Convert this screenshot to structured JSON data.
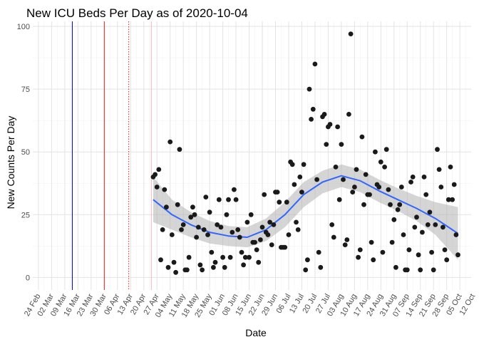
{
  "chart_data": {
    "type": "scatter",
    "title": "New ICU Beds Per Day as of 2020-10-04",
    "xlabel": "Date",
    "ylabel": "New Counts Per Day",
    "ylim": [
      -5,
      102
    ],
    "xlim": [
      "2020-02-21",
      "2020-10-11"
    ],
    "grid": true,
    "yticks": [
      0,
      25,
      50,
      75,
      100
    ],
    "xticks": [
      {
        "date": "2020-02-24",
        "label": "24 Feb"
      },
      {
        "date": "2020-03-02",
        "label": "02 Mar"
      },
      {
        "date": "2020-03-09",
        "label": "09 Mar"
      },
      {
        "date": "2020-03-16",
        "label": "16 Mar"
      },
      {
        "date": "2020-03-23",
        "label": "23 Mar"
      },
      {
        "date": "2020-03-30",
        "label": "30 Mar"
      },
      {
        "date": "2020-04-06",
        "label": "06 Apr"
      },
      {
        "date": "2020-04-13",
        "label": "13 Apr"
      },
      {
        "date": "2020-04-20",
        "label": "20 Apr"
      },
      {
        "date": "2020-04-27",
        "label": "27 Apr"
      },
      {
        "date": "2020-05-04",
        "label": "04 May"
      },
      {
        "date": "2020-05-11",
        "label": "11 May"
      },
      {
        "date": "2020-05-18",
        "label": "18 May"
      },
      {
        "date": "2020-05-25",
        "label": "25 May"
      },
      {
        "date": "2020-06-01",
        "label": "01 Jun"
      },
      {
        "date": "2020-06-08",
        "label": "08 Jun"
      },
      {
        "date": "2020-06-15",
        "label": "15 Jun"
      },
      {
        "date": "2020-06-22",
        "label": "22 Jun"
      },
      {
        "date": "2020-06-29",
        "label": "29 Jun"
      },
      {
        "date": "2020-07-06",
        "label": "06 Jul"
      },
      {
        "date": "2020-07-13",
        "label": "13 Jul"
      },
      {
        "date": "2020-07-20",
        "label": "20 Jul"
      },
      {
        "date": "2020-07-27",
        "label": "27 Jul"
      },
      {
        "date": "2020-08-03",
        "label": "03 Aug"
      },
      {
        "date": "2020-08-10",
        "label": "10 Aug"
      },
      {
        "date": "2020-08-17",
        "label": "17 Aug"
      },
      {
        "date": "2020-08-24",
        "label": "24 Aug"
      },
      {
        "date": "2020-08-31",
        "label": "31 Aug"
      },
      {
        "date": "2020-09-07",
        "label": "07 Sep"
      },
      {
        "date": "2020-09-14",
        "label": "14 Sep"
      },
      {
        "date": "2020-09-21",
        "label": "21 Sep"
      },
      {
        "date": "2020-09-28",
        "label": "28 Sep"
      },
      {
        "date": "2020-10-05",
        "label": "05 Oct"
      },
      {
        "date": "2020-10-12",
        "label": "12 Oct"
      }
    ],
    "reference_lines": [
      {
        "date": "2020-03-13",
        "color": "#00008b",
        "style": "solid"
      },
      {
        "date": "2020-03-30",
        "color": "#e31a1c",
        "style": "solid"
      },
      {
        "date": "2020-04-12",
        "color": "#e31a1c",
        "style": "dotted"
      },
      {
        "date": "2020-04-24",
        "color": "#f4b6b6",
        "style": "solid"
      }
    ],
    "colors": {
      "points": "#1a1a1a",
      "smooth_line": "#3366ff",
      "confidence_band": "#b3b3b3",
      "grid_major": "#e3e3e3",
      "grid_minor": "#f2f2f2"
    },
    "points": [
      {
        "x": "2020-04-25",
        "y": 40
      },
      {
        "x": "2020-04-26",
        "y": 41
      },
      {
        "x": "2020-04-27",
        "y": 36
      },
      {
        "x": "2020-04-28",
        "y": 43
      },
      {
        "x": "2020-04-29",
        "y": 7
      },
      {
        "x": "2020-04-30",
        "y": 19
      },
      {
        "x": "2020-05-01",
        "y": 35
      },
      {
        "x": "2020-05-02",
        "y": 28
      },
      {
        "x": "2020-05-03",
        "y": 4
      },
      {
        "x": "2020-05-04",
        "y": 54
      },
      {
        "x": "2020-05-05",
        "y": 17
      },
      {
        "x": "2020-05-06",
        "y": 6
      },
      {
        "x": "2020-05-07",
        "y": 2
      },
      {
        "x": "2020-05-08",
        "y": 29
      },
      {
        "x": "2020-05-09",
        "y": 51
      },
      {
        "x": "2020-05-10",
        "y": 19
      },
      {
        "x": "2020-05-11",
        "y": 21
      },
      {
        "x": "2020-05-12",
        "y": 3
      },
      {
        "x": "2020-05-13",
        "y": 3
      },
      {
        "x": "2020-05-14",
        "y": 8
      },
      {
        "x": "2020-05-15",
        "y": 24
      },
      {
        "x": "2020-05-16",
        "y": 28
      },
      {
        "x": "2020-05-17",
        "y": 25
      },
      {
        "x": "2020-05-18",
        "y": 16
      },
      {
        "x": "2020-05-19",
        "y": 20
      },
      {
        "x": "2020-05-20",
        "y": 5
      },
      {
        "x": "2020-05-21",
        "y": 3
      },
      {
        "x": "2020-05-22",
        "y": 19
      },
      {
        "x": "2020-05-23",
        "y": 32
      },
      {
        "x": "2020-05-24",
        "y": 17
      },
      {
        "x": "2020-05-25",
        "y": 26
      },
      {
        "x": "2020-05-26",
        "y": 10
      },
      {
        "x": "2020-05-27",
        "y": 4
      },
      {
        "x": "2020-05-28",
        "y": 6
      },
      {
        "x": "2020-05-29",
        "y": 21
      },
      {
        "x": "2020-05-30",
        "y": 31
      },
      {
        "x": "2020-05-31",
        "y": 20
      },
      {
        "x": "2020-06-01",
        "y": 8
      },
      {
        "x": "2020-06-02",
        "y": 4
      },
      {
        "x": "2020-06-03",
        "y": 25
      },
      {
        "x": "2020-06-04",
        "y": 31
      },
      {
        "x": "2020-06-05",
        "y": 8
      },
      {
        "x": "2020-06-06",
        "y": 18
      },
      {
        "x": "2020-06-07",
        "y": 35
      },
      {
        "x": "2020-06-08",
        "y": 31
      },
      {
        "x": "2020-06-09",
        "y": 19
      },
      {
        "x": "2020-06-10",
        "y": 16
      },
      {
        "x": "2020-06-11",
        "y": 10
      },
      {
        "x": "2020-06-12",
        "y": 5
      },
      {
        "x": "2020-06-13",
        "y": 8
      },
      {
        "x": "2020-06-14",
        "y": 22
      },
      {
        "x": "2020-06-15",
        "y": 8
      },
      {
        "x": "2020-06-16",
        "y": 25
      },
      {
        "x": "2020-06-17",
        "y": 14
      },
      {
        "x": "2020-06-18",
        "y": 14
      },
      {
        "x": "2020-06-19",
        "y": 11
      },
      {
        "x": "2020-06-20",
        "y": 6
      },
      {
        "x": "2020-06-21",
        "y": 15
      },
      {
        "x": "2020-06-22",
        "y": 20
      },
      {
        "x": "2020-06-23",
        "y": 33
      },
      {
        "x": "2020-06-24",
        "y": 18
      },
      {
        "x": "2020-06-25",
        "y": 17
      },
      {
        "x": "2020-06-26",
        "y": 22
      },
      {
        "x": "2020-06-27",
        "y": 13
      },
      {
        "x": "2020-06-28",
        "y": 21
      },
      {
        "x": "2020-06-29",
        "y": 34
      },
      {
        "x": "2020-06-30",
        "y": 34
      },
      {
        "x": "2020-07-01",
        "y": 30
      },
      {
        "x": "2020-07-02",
        "y": 12
      },
      {
        "x": "2020-07-03",
        "y": 12
      },
      {
        "x": "2020-07-04",
        "y": 12
      },
      {
        "x": "2020-07-05",
        "y": 30
      },
      {
        "x": "2020-07-06",
        "y": 17
      },
      {
        "x": "2020-07-07",
        "y": 46
      },
      {
        "x": "2020-07-08",
        "y": 45
      },
      {
        "x": "2020-07-09",
        "y": 37
      },
      {
        "x": "2020-07-10",
        "y": 22
      },
      {
        "x": "2020-07-11",
        "y": 19
      },
      {
        "x": "2020-07-12",
        "y": 40
      },
      {
        "x": "2020-07-13",
        "y": 34
      },
      {
        "x": "2020-07-14",
        "y": 45
      },
      {
        "x": "2020-07-15",
        "y": 3
      },
      {
        "x": "2020-07-16",
        "y": 7
      },
      {
        "x": "2020-07-17",
        "y": 75
      },
      {
        "x": "2020-07-18",
        "y": 63
      },
      {
        "x": "2020-07-19",
        "y": 67
      },
      {
        "x": "2020-07-20",
        "y": 85
      },
      {
        "x": "2020-07-21",
        "y": 39
      },
      {
        "x": "2020-07-22",
        "y": 10
      },
      {
        "x": "2020-07-23",
        "y": 4
      },
      {
        "x": "2020-07-24",
        "y": 64
      },
      {
        "x": "2020-07-25",
        "y": 65
      },
      {
        "x": "2020-07-26",
        "y": 53
      },
      {
        "x": "2020-07-27",
        "y": 60
      },
      {
        "x": "2020-07-28",
        "y": 61
      },
      {
        "x": "2020-07-29",
        "y": 21
      },
      {
        "x": "2020-07-30",
        "y": 16
      },
      {
        "x": "2020-07-31",
        "y": 44
      },
      {
        "x": "2020-08-01",
        "y": 60
      },
      {
        "x": "2020-08-02",
        "y": 31
      },
      {
        "x": "2020-08-03",
        "y": 53
      },
      {
        "x": "2020-08-04",
        "y": 39
      },
      {
        "x": "2020-08-05",
        "y": 13
      },
      {
        "x": "2020-08-06",
        "y": 15
      },
      {
        "x": "2020-08-07",
        "y": 65
      },
      {
        "x": "2020-08-08",
        "y": 97
      },
      {
        "x": "2020-08-09",
        "y": 34
      },
      {
        "x": "2020-08-10",
        "y": 36
      },
      {
        "x": "2020-08-11",
        "y": 43
      },
      {
        "x": "2020-08-12",
        "y": 8
      },
      {
        "x": "2020-08-13",
        "y": 11
      },
      {
        "x": "2020-08-14",
        "y": 56
      },
      {
        "x": "2020-08-15",
        "y": 29
      },
      {
        "x": "2020-08-16",
        "y": 41
      },
      {
        "x": "2020-08-17",
        "y": 33
      },
      {
        "x": "2020-08-18",
        "y": 33
      },
      {
        "x": "2020-08-19",
        "y": 14
      },
      {
        "x": "2020-08-20",
        "y": 7
      },
      {
        "x": "2020-08-21",
        "y": 50
      },
      {
        "x": "2020-08-22",
        "y": 37
      },
      {
        "x": "2020-08-23",
        "y": 36
      },
      {
        "x": "2020-08-24",
        "y": 46
      },
      {
        "x": "2020-08-25",
        "y": 10
      },
      {
        "x": "2020-08-26",
        "y": 44
      },
      {
        "x": "2020-08-27",
        "y": 51
      },
      {
        "x": "2020-08-28",
        "y": 35
      },
      {
        "x": "2020-08-29",
        "y": 29
      },
      {
        "x": "2020-08-30",
        "y": 14
      },
      {
        "x": "2020-08-31",
        "y": 23
      },
      {
        "x": "2020-09-01",
        "y": 4
      },
      {
        "x": "2020-09-02",
        "y": 27
      },
      {
        "x": "2020-09-03",
        "y": 29
      },
      {
        "x": "2020-09-04",
        "y": 36
      },
      {
        "x": "2020-09-05",
        "y": 17
      },
      {
        "x": "2020-09-06",
        "y": 3
      },
      {
        "x": "2020-09-07",
        "y": 3
      },
      {
        "x": "2020-09-08",
        "y": 11
      },
      {
        "x": "2020-09-09",
        "y": 38
      },
      {
        "x": "2020-09-10",
        "y": 40
      },
      {
        "x": "2020-09-11",
        "y": 20
      },
      {
        "x": "2020-09-12",
        "y": 24
      },
      {
        "x": "2020-09-13",
        "y": 9
      },
      {
        "x": "2020-09-14",
        "y": 3
      },
      {
        "x": "2020-09-15",
        "y": 18
      },
      {
        "x": "2020-09-16",
        "y": 40
      },
      {
        "x": "2020-09-17",
        "y": 33
      },
      {
        "x": "2020-09-18",
        "y": 21
      },
      {
        "x": "2020-09-19",
        "y": 26
      },
      {
        "x": "2020-09-20",
        "y": 10
      },
      {
        "x": "2020-09-21",
        "y": 3
      },
      {
        "x": "2020-09-22",
        "y": 21
      },
      {
        "x": "2020-09-23",
        "y": 51
      },
      {
        "x": "2020-09-24",
        "y": 43
      },
      {
        "x": "2020-09-25",
        "y": 36
      },
      {
        "x": "2020-09-26",
        "y": 20
      },
      {
        "x": "2020-09-27",
        "y": 11
      },
      {
        "x": "2020-09-28",
        "y": 7
      },
      {
        "x": "2020-09-29",
        "y": 31
      },
      {
        "x": "2020-09-30",
        "y": 44
      },
      {
        "x": "2020-10-01",
        "y": 31
      },
      {
        "x": "2020-10-02",
        "y": 37
      },
      {
        "x": "2020-10-03",
        "y": 17
      },
      {
        "x": "2020-10-04",
        "y": 9
      }
    ],
    "smooth": {
      "x": [
        "2020-04-25",
        "2020-05-05",
        "2020-05-15",
        "2020-05-25",
        "2020-06-04",
        "2020-06-14",
        "2020-06-24",
        "2020-07-04",
        "2020-07-14",
        "2020-07-24",
        "2020-08-03",
        "2020-08-13",
        "2020-08-23",
        "2020-09-02",
        "2020-09-12",
        "2020-09-22",
        "2020-10-04"
      ],
      "y": [
        31,
        25,
        21,
        18,
        16.5,
        16,
        19,
        25,
        33,
        38,
        40.5,
        38.5,
        34.5,
        31,
        27.5,
        23.5,
        17.5
      ],
      "lower": [
        22,
        19,
        16,
        13.5,
        12.5,
        12,
        14.5,
        20,
        28,
        33.5,
        36,
        34,
        30,
        26.5,
        22.5,
        17,
        7
      ],
      "upper": [
        40,
        31,
        26,
        22.5,
        20.5,
        20,
        23.5,
        30,
        38,
        42.5,
        45,
        43,
        39,
        35.5,
        32.5,
        30,
        28
      ]
    }
  }
}
